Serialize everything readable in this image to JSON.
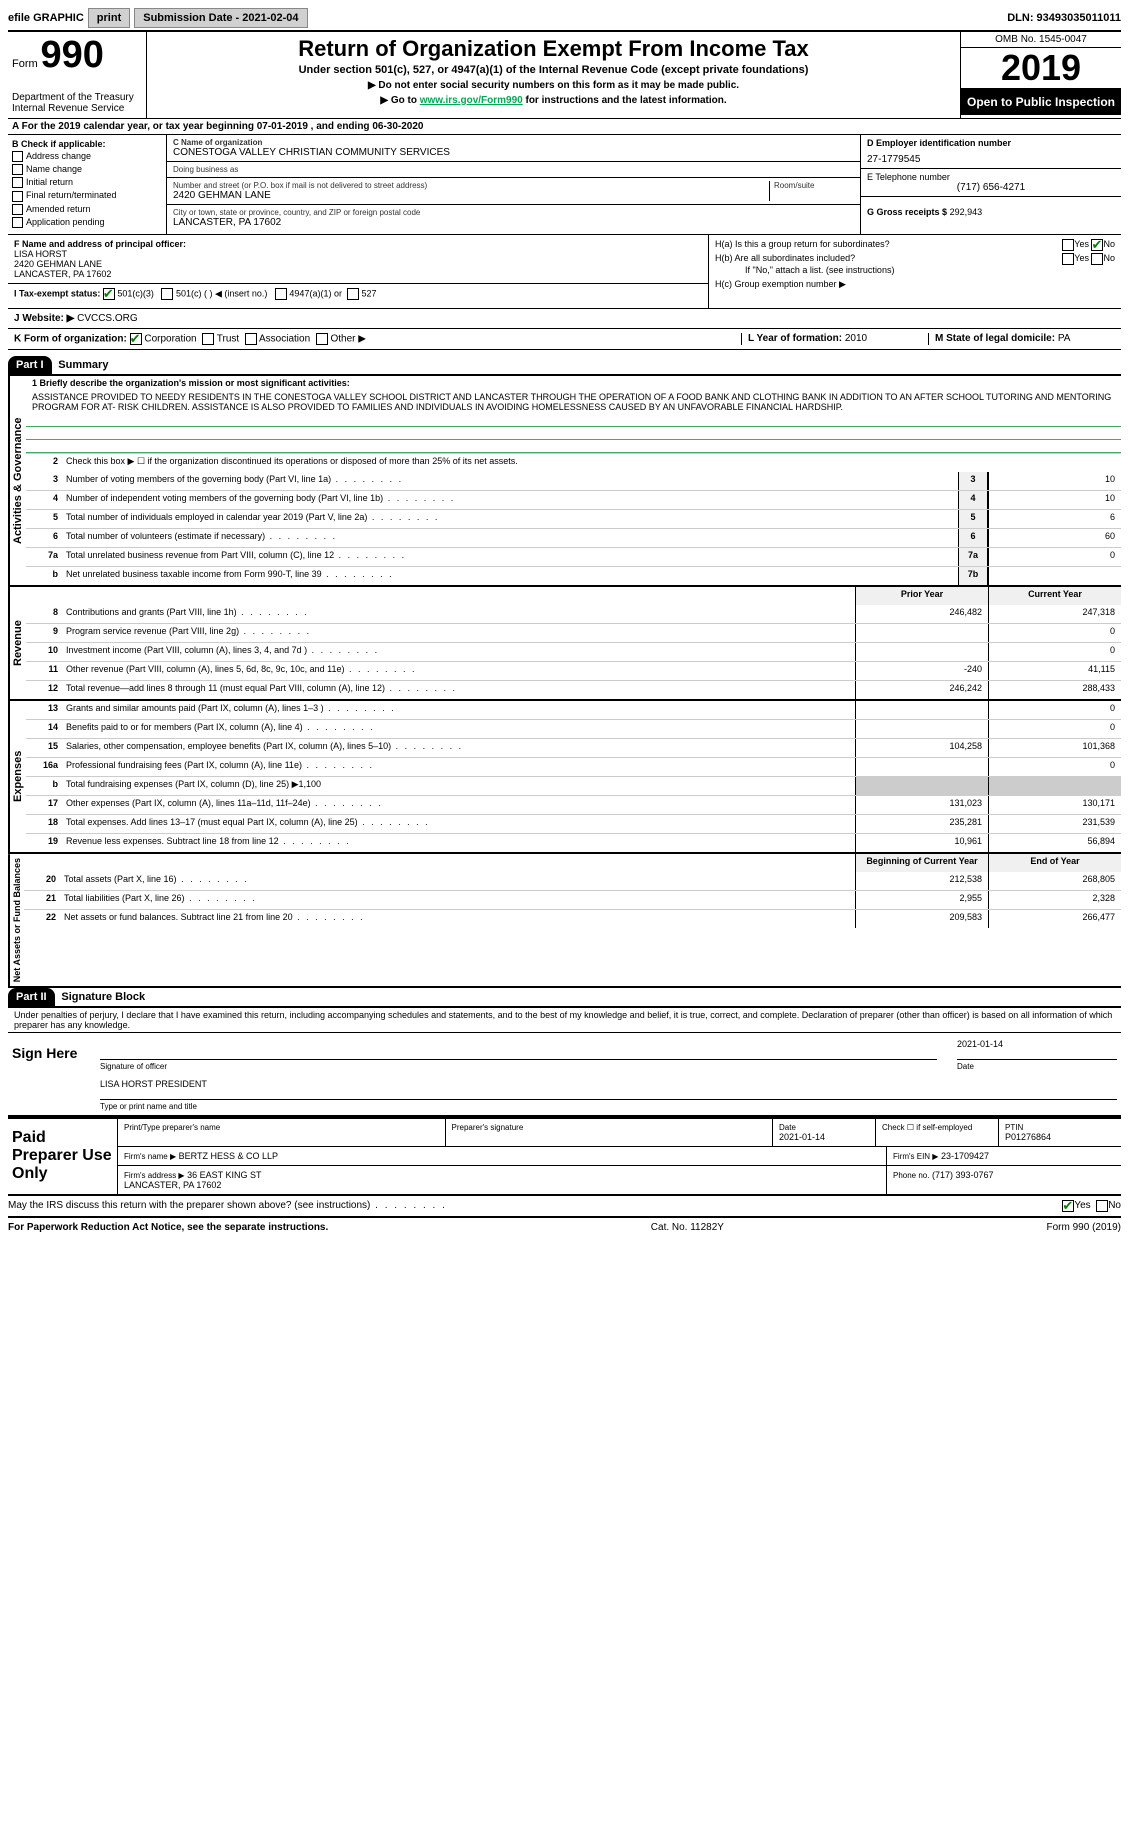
{
  "top": {
    "efile": "efile GRAPHIC",
    "print": "print",
    "sub_date_label": "Submission Date - 2021-02-04",
    "dln": "DLN: 93493035011011"
  },
  "header": {
    "form_word": "Form",
    "form_num": "990",
    "dept": "Department of the Treasury\nInternal Revenue Service",
    "title": "Return of Organization Exempt From Income Tax",
    "subtitle": "Under section 501(c), 527, or 4947(a)(1) of the Internal Revenue Code (except private foundations)",
    "note1": "▶ Do not enter social security numbers on this form as it may be made public.",
    "note2_pre": "▶ Go to ",
    "note2_link": "www.irs.gov/Form990",
    "note2_post": " for instructions and the latest information.",
    "omb": "OMB No. 1545-0047",
    "year": "2019",
    "open": "Open to Public Inspection"
  },
  "row_a": "A For the 2019 calendar year, or tax year beginning 07-01-2019   , and ending 06-30-2020",
  "box_b": {
    "label": "B Check if applicable:",
    "items": [
      "Address change",
      "Name change",
      "Initial return",
      "Final return/terminated",
      "Amended return",
      "Application pending"
    ]
  },
  "box_c": {
    "name_label": "C Name of organization",
    "name": "CONESTOGA VALLEY CHRISTIAN COMMUNITY SERVICES",
    "dba_label": "Doing business as",
    "dba": "",
    "addr_label": "Number and street (or P.O. box if mail is not delivered to street address)",
    "room_label": "Room/suite",
    "addr": "2420 GEHMAN LANE",
    "city_label": "City or town, state or province, country, and ZIP or foreign postal code",
    "city": "LANCASTER, PA  17602"
  },
  "box_d": {
    "label": "D Employer identification number",
    "val": "27-1779545"
  },
  "box_e": {
    "label": "E Telephone number",
    "val": "(717) 656-4271"
  },
  "box_g": {
    "label": "G Gross receipts $",
    "val": "292,943"
  },
  "box_f": {
    "label": "F  Name and address of principal officer:",
    "name": "LISA HORST",
    "addr1": "2420 GEHMAN LANE",
    "addr2": "LANCASTER, PA  17602"
  },
  "box_h": {
    "a": "H(a)  Is this a group return for subordinates?",
    "b": "H(b)  Are all subordinates included?",
    "b_note": "If \"No,\" attach a list. (see instructions)",
    "c": "H(c)  Group exemption number ▶",
    "yes": "Yes",
    "no": "No"
  },
  "box_i": {
    "label": "I  Tax-exempt status:",
    "o1": "501(c)(3)",
    "o2": "501(c) (   ) ◀ (insert no.)",
    "o3": "4947(a)(1) or",
    "o4": "527"
  },
  "box_j": {
    "label": "J  Website: ▶",
    "val": "CVCCS.ORG"
  },
  "box_k": {
    "label": "K Form of organization:",
    "o1": "Corporation",
    "o2": "Trust",
    "o3": "Association",
    "o4": "Other ▶"
  },
  "box_l": {
    "label": "L Year of formation:",
    "val": "2010"
  },
  "box_m": {
    "label": "M State of legal domicile:",
    "val": "PA"
  },
  "part1": {
    "num": "Part I",
    "title": "Summary"
  },
  "summary": {
    "l1_label": "1  Briefly describe the organization's mission or most significant activities:",
    "l1_text": "ASSISTANCE PROVIDED TO NEEDY RESIDENTS IN THE CONESTOGA VALLEY SCHOOL DISTRICT AND LANCASTER THROUGH THE OPERATION OF A FOOD BANK AND CLOTHING BANK IN ADDITION TO AN AFTER SCHOOL TUTORING AND MENTORING PROGRAM FOR AT- RISK CHILDREN. ASSISTANCE IS ALSO PROVIDED TO FAMILIES AND INDIVIDUALS IN AVOIDING HOMELESSNESS CAUSED BY AN UNFAVORABLE FINANCIAL HARDSHIP.",
    "l2": "Check this box ▶ ☐ if the organization discontinued its operations or disposed of more than 25% of its net assets.",
    "lines_gov": [
      {
        "n": "3",
        "t": "Number of voting members of the governing body (Part VI, line 1a)",
        "box": "3",
        "v": "10"
      },
      {
        "n": "4",
        "t": "Number of independent voting members of the governing body (Part VI, line 1b)",
        "box": "4",
        "v": "10"
      },
      {
        "n": "5",
        "t": "Total number of individuals employed in calendar year 2019 (Part V, line 2a)",
        "box": "5",
        "v": "6"
      },
      {
        "n": "6",
        "t": "Total number of volunteers (estimate if necessary)",
        "box": "6",
        "v": "60"
      },
      {
        "n": "7a",
        "t": "Total unrelated business revenue from Part VIII, column (C), line 12",
        "box": "7a",
        "v": "0"
      },
      {
        "n": "b",
        "t": "Net unrelated business taxable income from Form 990-T, line 39",
        "box": "7b",
        "v": ""
      }
    ],
    "hdr_prior": "Prior Year",
    "hdr_curr": "Current Year",
    "revenue": [
      {
        "n": "8",
        "t": "Contributions and grants (Part VIII, line 1h)",
        "p": "246,482",
        "c": "247,318"
      },
      {
        "n": "9",
        "t": "Program service revenue (Part VIII, line 2g)",
        "p": "",
        "c": "0"
      },
      {
        "n": "10",
        "t": "Investment income (Part VIII, column (A), lines 3, 4, and 7d )",
        "p": "",
        "c": "0"
      },
      {
        "n": "11",
        "t": "Other revenue (Part VIII, column (A), lines 5, 6d, 8c, 9c, 10c, and 11e)",
        "p": "-240",
        "c": "41,115"
      },
      {
        "n": "12",
        "t": "Total revenue—add lines 8 through 11 (must equal Part VIII, column (A), line 12)",
        "p": "246,242",
        "c": "288,433"
      }
    ],
    "expenses": [
      {
        "n": "13",
        "t": "Grants and similar amounts paid (Part IX, column (A), lines 1–3 )",
        "p": "",
        "c": "0"
      },
      {
        "n": "14",
        "t": "Benefits paid to or for members (Part IX, column (A), line 4)",
        "p": "",
        "c": "0"
      },
      {
        "n": "15",
        "t": "Salaries, other compensation, employee benefits (Part IX, column (A), lines 5–10)",
        "p": "104,258",
        "c": "101,368"
      },
      {
        "n": "16a",
        "t": "Professional fundraising fees (Part IX, column (A), line 11e)",
        "p": "",
        "c": "0"
      },
      {
        "n": "b",
        "t": "Total fundraising expenses (Part IX, column (D), line 25) ▶1,100",
        "p": "",
        "c": ""
      },
      {
        "n": "17",
        "t": "Other expenses (Part IX, column (A), lines 11a–11d, 11f–24e)",
        "p": "131,023",
        "c": "130,171"
      },
      {
        "n": "18",
        "t": "Total expenses. Add lines 13–17 (must equal Part IX, column (A), line 25)",
        "p": "235,281",
        "c": "231,539"
      },
      {
        "n": "19",
        "t": "Revenue less expenses. Subtract line 18 from line 12",
        "p": "10,961",
        "c": "56,894"
      }
    ],
    "hdr_beg": "Beginning of Current Year",
    "hdr_end": "End of Year",
    "netassets": [
      {
        "n": "20",
        "t": "Total assets (Part X, line 16)",
        "p": "212,538",
        "c": "268,805"
      },
      {
        "n": "21",
        "t": "Total liabilities (Part X, line 26)",
        "p": "2,955",
        "c": "2,328"
      },
      {
        "n": "22",
        "t": "Net assets or fund balances. Subtract line 21 from line 20",
        "p": "209,583",
        "c": "266,477"
      }
    ],
    "side_gov": "Activities & Governance",
    "side_rev": "Revenue",
    "side_exp": "Expenses",
    "side_net": "Net Assets or Fund Balances"
  },
  "part2": {
    "num": "Part II",
    "title": "Signature Block"
  },
  "sig": {
    "jurat": "Under penalties of perjury, I declare that I have examined this return, including accompanying schedules and statements, and to the best of my knowledge and belief, it is true, correct, and complete. Declaration of preparer (other than officer) is based on all information of which preparer has any knowledge.",
    "sign_here": "Sign Here",
    "sig_officer": "Signature of officer",
    "date": "Date",
    "date_val": "2021-01-14",
    "name_title": "LISA HORST  PRESIDENT",
    "name_title_label": "Type or print name and title"
  },
  "prep": {
    "label": "Paid Preparer Use Only",
    "h1": "Print/Type preparer's name",
    "h2": "Preparer's signature",
    "h3": "Date",
    "h3v": "2021-01-14",
    "h4": "Check ☐ if self-employed",
    "h5": "PTIN",
    "h5v": "P01276864",
    "firm_name_l": "Firm's name    ▶",
    "firm_name": "BERTZ HESS & CO LLP",
    "firm_ein_l": "Firm's EIN ▶",
    "firm_ein": "23-1709427",
    "firm_addr_l": "Firm's address ▶",
    "firm_addr": "36 EAST KING ST\nLANCASTER, PA  17602",
    "phone_l": "Phone no.",
    "phone": "(717) 393-0767"
  },
  "discuss": {
    "q": "May the IRS discuss this return with the preparer shown above? (see instructions)",
    "yes": "Yes",
    "no": "No"
  },
  "footer": {
    "l": "For Paperwork Reduction Act Notice, see the separate instructions.",
    "m": "Cat. No. 11282Y",
    "r": "Form 990 (2019)"
  }
}
